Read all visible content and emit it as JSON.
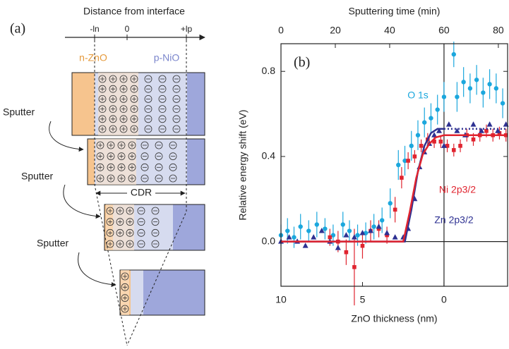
{
  "diagram": {
    "panel_label": "(a)",
    "axis_title": "Distance from interface",
    "tick_labels": [
      "-ln",
      "0",
      "+lp"
    ],
    "n_label": "n-ZnO",
    "p_label": "p-NiO",
    "sputter_labels": [
      "Sputter",
      "Sputter",
      "Sputter"
    ],
    "cdr_label": "CDR"
  },
  "chart_data": {
    "type": "scatter",
    "panel_label": "(b)",
    "title_top": "Sputtering time (min)",
    "xlabel": "ZnO thickness (nm)",
    "ylabel": "Relative energy shift (eV)",
    "xlim": [
      10,
      -3.9
    ],
    "xticks": [
      10,
      5,
      0
    ],
    "x2lim": [
      0,
      83.4
    ],
    "x2ticks": [
      0,
      20,
      40,
      60,
      80
    ],
    "ylim": [
      -0.21,
      0.93
    ],
    "yticks": [
      {
        "value": 0,
        "label": "0.0"
      },
      0.4,
      0.8
    ],
    "reference_lines": {
      "x": 0,
      "y": 0
    },
    "series": [
      {
        "name": "O 1s",
        "color": "#1ba7dd",
        "marker": "circle",
        "x": [
          10,
          9.6,
          9.2,
          8.8,
          8.3,
          7.8,
          7.3,
          6.8,
          6.2,
          5.8,
          5.3,
          4.8,
          4.3,
          3.8,
          3.3,
          2.8,
          2.4,
          2.0,
          1.6,
          1.2,
          0.8,
          0.4,
          0.0,
          -0.6,
          -0.8,
          -1.2,
          -1.6,
          -2.0,
          -2.4,
          -2.8,
          -3.2,
          -3.6
        ],
        "values": [
          0.03,
          0.05,
          0.02,
          0.07,
          0.05,
          0.08,
          0.06,
          0.03,
          0.08,
          0.05,
          0.03,
          0.04,
          0.07,
          0.1,
          0.18,
          0.36,
          0.38,
          0.45,
          0.5,
          0.56,
          0.58,
          0.62,
          0.68,
          0.88,
          0.68,
          0.75,
          0.72,
          0.76,
          0.7,
          0.74,
          0.72,
          0.65
        ],
        "errors": [
          0.05,
          0.06,
          0.05,
          0.06,
          0.05,
          0.06,
          0.05,
          0.05,
          0.06,
          0.05,
          0.05,
          0.05,
          0.06,
          0.06,
          0.07,
          0.07,
          0.07,
          0.07,
          0.07,
          0.07,
          0.07,
          0.07,
          0.07,
          0.06,
          0.07,
          0.07,
          0.07,
          0.07,
          0.07,
          0.07,
          0.07,
          0.07
        ]
      },
      {
        "name": "Ni 2p3/2",
        "color": "#e0242f",
        "marker": "square",
        "x": [
          7.0,
          6.5,
          6.0,
          5.5,
          5.0,
          4.5,
          4.0,
          3.5,
          3.0,
          2.6,
          2.2,
          1.8,
          1.4,
          1.0,
          0.6,
          0.2,
          -0.2,
          -0.6,
          -1.0,
          -1.4,
          -1.8,
          -2.2,
          -2.6,
          -3.0,
          -3.4,
          -3.8
        ],
        "values": [
          0.02,
          0.0,
          -0.05,
          -0.12,
          -0.02,
          0.05,
          0.06,
          0.03,
          0.15,
          0.3,
          0.38,
          0.4,
          0.45,
          0.48,
          0.47,
          0.47,
          0.45,
          0.43,
          0.45,
          0.5,
          0.48,
          0.5,
          0.52,
          0.5,
          0.51,
          0.5
        ],
        "errors": [
          0.04,
          0.05,
          0.06,
          0.18,
          0.06,
          0.05,
          0.04,
          0.04,
          0.06,
          0.05,
          0.04,
          0.03,
          0.03,
          0.03,
          0.03,
          0.03,
          0.03,
          0.03,
          0.03,
          0.03,
          0.03,
          0.03,
          0.03,
          0.03,
          0.03,
          0.03
        ]
      },
      {
        "name": "Zn 2p3/2",
        "color": "#2e3192",
        "marker": "triangle",
        "x": [
          10,
          9.5,
          9.0,
          8.5,
          8.0,
          7.5,
          7.0,
          6.5,
          6.0,
          5.5,
          5.0,
          4.5,
          4.0,
          3.5,
          3.0,
          2.5,
          2.2,
          1.8,
          1.5,
          1.2,
          0.9,
          0.6,
          0.3,
          0.0,
          -0.3,
          -0.8,
          -1.3,
          -1.8,
          -2.3,
          -2.8,
          -3.3,
          -3.8
        ],
        "values": [
          0.0,
          0.02,
          0.0,
          -0.02,
          0.02,
          0.05,
          0.0,
          -0.03,
          0.03,
          0.02,
          0.04,
          0.05,
          0.07,
          0.04,
          0.02,
          0.02,
          0.06,
          0.2,
          0.35,
          0.42,
          0.46,
          0.5,
          0.52,
          0.45,
          0.55,
          0.52,
          0.5,
          0.55,
          0.52,
          0.55,
          0.52,
          0.55
        ]
      }
    ],
    "fits": [
      {
        "color": "#2e3192",
        "dash": "solid",
        "x": [
          10,
          2.4,
          2.0,
          1.6,
          1.2,
          0.8,
          0.4,
          0.0
        ],
        "values": [
          0,
          0,
          0.15,
          0.33,
          0.45,
          0.51,
          0.53,
          0.53
        ]
      },
      {
        "color": "#2e3192",
        "dash": "dotted",
        "x": [
          0.0,
          -3.9
        ],
        "values": [
          0.53,
          0.53
        ]
      },
      {
        "color": "#e0242f",
        "dash": "solid",
        "x": [
          10,
          2.5,
          2.1,
          1.7,
          1.3,
          0.9,
          0.5,
          0.0,
          -3.9
        ],
        "values": [
          0,
          0,
          0.14,
          0.3,
          0.41,
          0.46,
          0.49,
          0.5,
          0.5
        ]
      }
    ]
  }
}
